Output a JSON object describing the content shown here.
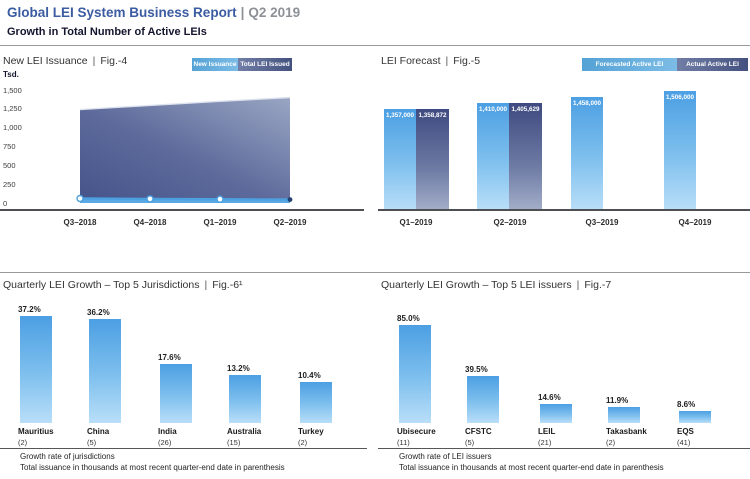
{
  "header": {
    "title": "Global LEI System Business Report",
    "separator": "|",
    "period": "Q2 2019",
    "subtitle": "Growth in Total Number of Active LEIs"
  },
  "ui": {
    "pipe": "|"
  },
  "colors": {
    "brand_blue": "#3b5ba2",
    "light_bar_top": "#4c9fe3",
    "light_bar_bottom": "#b9def8",
    "dark_bar_top": "#3e4a80",
    "dark_bar_bottom": "#a3aec9",
    "area_dark": "#46548a",
    "area_light": "#97a3c2",
    "line_blue": "#4da0e0"
  },
  "chart_data": [
    {
      "type": "area",
      "title": "New LEI Issuance",
      "fig_label": "Fig.-4",
      "legend": [
        {
          "label": "New Issuance",
          "style": "light"
        },
        {
          "label": "Total LEI Issued",
          "style": "dark"
        }
      ],
      "y_unit": "Tsd.",
      "y_ticks": [
        "1,500",
        "1,250",
        "1,000",
        "750",
        "500",
        "250",
        "0"
      ],
      "ylim_thousands": [
        0,
        1500
      ],
      "x": [
        "Q3–2018",
        "Q4–2018",
        "Q1–2019",
        "Q2–2019"
      ],
      "series": [
        {
          "name": "Total LEI Issued",
          "values_thousands": [
            1240,
            1295,
            1350,
            1400
          ],
          "estimated": true
        },
        {
          "name": "New Issuance",
          "values_thousands": [
            60,
            55,
            50,
            45
          ],
          "estimated": true
        }
      ]
    },
    {
      "type": "bar",
      "title": "LEI Forecast",
      "fig_label": "Fig.-5",
      "legend": [
        {
          "label": "Forecasted Active LEI",
          "style": "light"
        },
        {
          "label": "Actual Active LEI",
          "style": "dark"
        }
      ],
      "categories": [
        "Q1–2019",
        "Q2–2019",
        "Q3–2019",
        "Q4–2019"
      ],
      "series": [
        {
          "name": "Forecasted Active LEI",
          "values": [
            1357000,
            1410000,
            1458000,
            1506000
          ],
          "value_labels": [
            "1,357,000",
            "1,410,000",
            "1,458,000",
            "1,506,000"
          ]
        },
        {
          "name": "Actual Active LEI",
          "values": [
            1358872,
            1405629,
            null,
            null
          ],
          "value_labels": [
            "1,358,872",
            "1,405,629",
            null,
            null
          ]
        }
      ]
    },
    {
      "type": "bar",
      "title": "Quarterly LEI Growth – Top 5 Jurisdictions",
      "fig_label": "Fig.-6¹",
      "categories": [
        "Mauritius",
        "China",
        "India",
        "Australia",
        "Turkey"
      ],
      "counts": [
        "(2)",
        "(5)",
        "(26)",
        "(15)",
        "(2)"
      ],
      "values_percent": [
        37.2,
        36.2,
        17.6,
        13.2,
        10.4
      ],
      "value_labels": [
        "37.2%",
        "36.2%",
        "17.6%",
        "13.2%",
        "10.4%"
      ],
      "footnotes": [
        "Growth rate of jurisdictions",
        "Total issuance in thousands at most recent quarter-end date in parenthesis"
      ]
    },
    {
      "type": "bar",
      "title": "Quarterly LEI Growth – Top 5 LEI issuers",
      "fig_label": "Fig.-7",
      "categories": [
        "Ubisecure",
        "CFSTC",
        "LEIL",
        "Takasbank",
        "EQS"
      ],
      "counts": [
        "(11)",
        "(5)",
        "(21)",
        "(2)",
        "(41)"
      ],
      "values_percent": [
        85.0,
        39.5,
        14.6,
        11.9,
        8.6
      ],
      "value_labels": [
        "85.0%",
        "39.5%",
        "14.6%",
        "11.9%",
        "8.6%"
      ],
      "footnotes": [
        "Growth rate of LEI issuers",
        "Total issuance in thousands at most recent quarter-end date in parenthesis"
      ]
    }
  ]
}
